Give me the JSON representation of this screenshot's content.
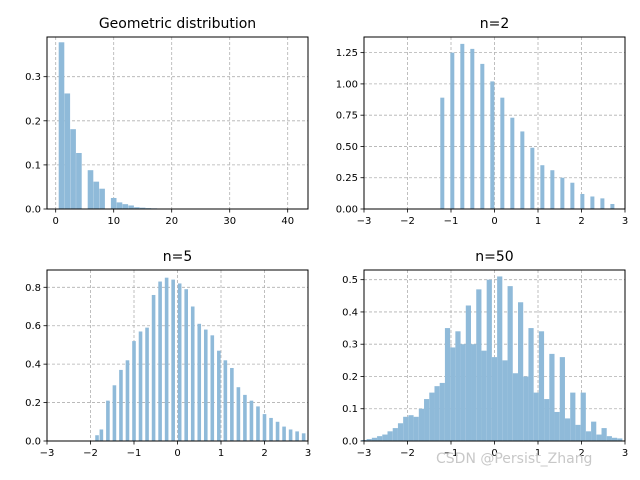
{
  "watermark": "CSDN @Persist_Zhang",
  "bar_color": "#8fbad9",
  "chart_data": [
    {
      "type": "bar",
      "title": "Geometric distribution",
      "xlim": [
        -1.5,
        43.5
      ],
      "ylim": [
        0,
        0.39
      ],
      "xticks": [
        0,
        10,
        20,
        30,
        40
      ],
      "yticks": [
        0.0,
        0.1,
        0.2,
        0.3
      ],
      "x": [
        1,
        2,
        3,
        4,
        5,
        6,
        7,
        8,
        9,
        10,
        11,
        12,
        13,
        14,
        15,
        16,
        17,
        18,
        19,
        20,
        21,
        22,
        23,
        24,
        25
      ],
      "values": [
        0.378,
        0.262,
        0.181,
        0.127,
        0.0,
        0.088,
        0.062,
        0.046,
        0.0,
        0.025,
        0.015,
        0.011,
        0.008,
        0.004,
        0.003,
        0.002,
        0.0015,
        0.001,
        0.0008,
        0.0005,
        0.0003,
        0.0002,
        0.0001,
        0.0001,
        0.0001
      ]
    },
    {
      "type": "bar",
      "title": "n=2",
      "xlim": [
        -3,
        3
      ],
      "ylim": [
        0,
        1.375
      ],
      "xticks": [
        -3,
        -2,
        -1,
        0,
        1,
        2,
        3
      ],
      "yticks": [
        0.0,
        0.25,
        0.5,
        0.75,
        1.0,
        1.25
      ],
      "x": [
        -1.2,
        -0.97,
        -0.74,
        -0.51,
        -0.28,
        -0.05,
        0.18,
        0.41,
        0.64,
        0.87,
        1.1,
        1.33,
        1.56,
        1.79,
        2.02,
        2.25,
        2.48,
        2.71
      ],
      "values": [
        0.89,
        1.25,
        1.32,
        1.28,
        1.16,
        1.02,
        0.89,
        0.73,
        0.62,
        0.49,
        0.35,
        0.31,
        0.25,
        0.21,
        0.12,
        0.1,
        0.085,
        0.04
      ]
    },
    {
      "type": "bar",
      "title": "n=5",
      "xlim": [
        -3,
        3
      ],
      "ylim": [
        0,
        0.89
      ],
      "xticks": [
        -3,
        -2,
        -1,
        0,
        1,
        2,
        3
      ],
      "yticks": [
        0.0,
        0.2,
        0.4,
        0.6,
        0.8
      ],
      "x": [
        -1.85,
        -1.75,
        -1.6,
        -1.45,
        -1.3,
        -1.15,
        -1.0,
        -0.85,
        -0.7,
        -0.55,
        -0.4,
        -0.25,
        -0.1,
        0.05,
        0.2,
        0.35,
        0.5,
        0.65,
        0.8,
        0.95,
        1.1,
        1.25,
        1.4,
        1.55,
        1.7,
        1.85,
        2.0,
        2.15,
        2.3,
        2.45,
        2.6,
        2.75,
        2.9
      ],
      "values": [
        0.03,
        0.06,
        0.21,
        0.29,
        0.37,
        0.42,
        0.52,
        0.57,
        0.59,
        0.76,
        0.83,
        0.85,
        0.84,
        0.82,
        0.79,
        0.7,
        0.61,
        0.58,
        0.55,
        0.47,
        0.42,
        0.38,
        0.28,
        0.24,
        0.21,
        0.18,
        0.14,
        0.12,
        0.1,
        0.075,
        0.06,
        0.05,
        0.04
      ]
    },
    {
      "type": "histogram",
      "title": "n=50",
      "xlim": [
        -3,
        3
      ],
      "ylim": [
        0,
        0.53
      ],
      "xticks": [
        -3,
        -2,
        -1,
        0,
        1,
        2,
        3
      ],
      "yticks": [
        0.0,
        0.1,
        0.2,
        0.3,
        0.4,
        0.5
      ],
      "x": [
        -3.0,
        -2.88,
        -2.76,
        -2.64,
        -2.52,
        -2.4,
        -2.28,
        -2.16,
        -2.04,
        -1.92,
        -1.8,
        -1.68,
        -1.56,
        -1.44,
        -1.32,
        -1.2,
        -1.08,
        -0.96,
        -0.84,
        -0.72,
        -0.6,
        -0.48,
        -0.36,
        -0.24,
        -0.12,
        0.0,
        0.12,
        0.24,
        0.36,
        0.48,
        0.6,
        0.72,
        0.84,
        0.96,
        1.08,
        1.2,
        1.32,
        1.44,
        1.56,
        1.68,
        1.8,
        1.92,
        2.04,
        2.16,
        2.28,
        2.4,
        2.52,
        2.64,
        2.76,
        2.88
      ],
      "values": [
        0.003,
        0.006,
        0.01,
        0.015,
        0.02,
        0.03,
        0.04,
        0.055,
        0.075,
        0.08,
        0.075,
        0.1,
        0.13,
        0.15,
        0.17,
        0.18,
        0.35,
        0.29,
        0.34,
        0.3,
        0.42,
        0.3,
        0.47,
        0.28,
        0.5,
        0.26,
        0.51,
        0.25,
        0.48,
        0.21,
        0.43,
        0.2,
        0.35,
        0.15,
        0.34,
        0.13,
        0.27,
        0.09,
        0.26,
        0.07,
        0.15,
        0.05,
        0.15,
        0.03,
        0.06,
        0.02,
        0.04,
        0.015,
        0.01,
        0.008
      ]
    }
  ]
}
